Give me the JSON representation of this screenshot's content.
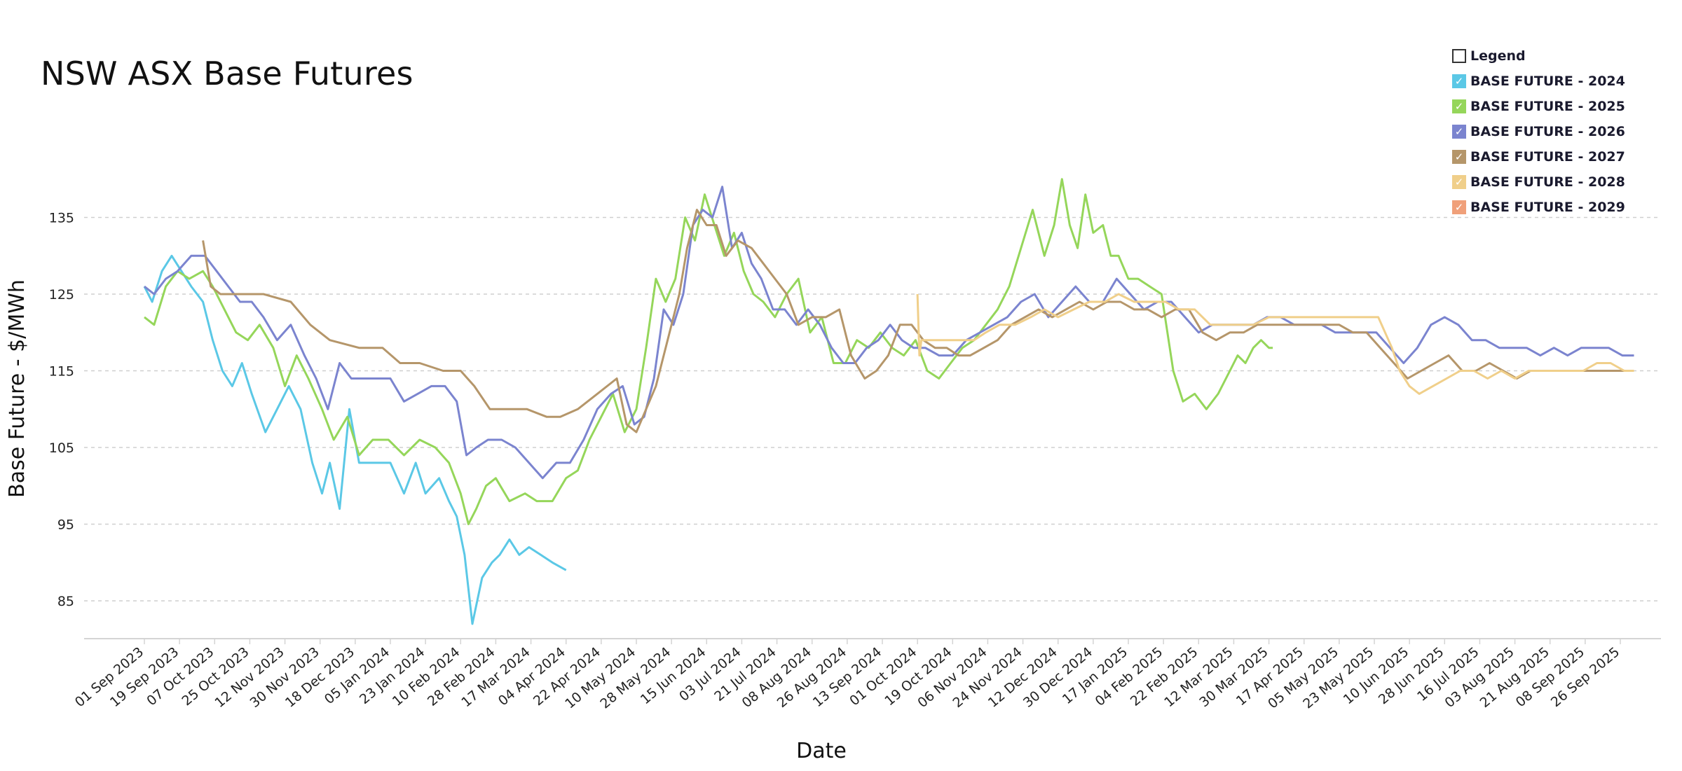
{
  "title": "NSW ASX Base Futures",
  "legend": {
    "title": "Legend",
    "items": [
      {
        "label": "BASE FUTURE - 2024",
        "color": "#5bc8e6"
      },
      {
        "label": "BASE FUTURE - 2025",
        "color": "#95d65a"
      },
      {
        "label": "BASE FUTURE - 2026",
        "color": "#7b84cf"
      },
      {
        "label": "BASE FUTURE - 2027",
        "color": "#b5966a"
      },
      {
        "label": "BASE FUTURE - 2028",
        "color": "#f0cf8a"
      },
      {
        "label": "BASE FUTURE - 2029",
        "color": "#f0a07a"
      }
    ]
  },
  "chart_data": {
    "type": "line",
    "xlabel": "Date",
    "ylabel": "Base Future -  $/MWh",
    "x_ticks": [
      "01 Sep 2023",
      "19 Sep 2023",
      "07 Oct 2023",
      "25 Oct 2023",
      "12 Nov 2023",
      "30 Nov 2023",
      "18 Dec 2023",
      "05 Jan 2024",
      "23 Jan 2024",
      "10 Feb 2024",
      "28 Feb 2024",
      "17 Mar 2024",
      "04 Apr 2024",
      "22 Apr 2024",
      "10 May 2024",
      "28 May 2024",
      "15 Jun 2024",
      "03 Jul 2024",
      "21 Jul 2024",
      "08 Aug 2024",
      "26 Aug 2024",
      "13 Sep 2024",
      "01 Oct 2024",
      "19 Oct 2024",
      "06 Nov 2024",
      "24 Nov 2024",
      "12 Dec 2024",
      "30 Dec 2024",
      "17 Jan 2025",
      "04 Feb 2025",
      "22 Feb 2025",
      "12 Mar 2025",
      "30 Mar 2025",
      "17 Apr 2025",
      "05 May 2025",
      "23 May 2025",
      "10 Jun 2025",
      "28 Jun 2025",
      "16 Jul 2025",
      "03 Aug 2025",
      "21 Aug 2025",
      "08 Sep 2025",
      "26 Sep 2025"
    ],
    "y_ticks": [
      85,
      95,
      105,
      115,
      125,
      135
    ],
    "ylim": [
      80,
      137
    ],
    "grid": true,
    "series": [
      {
        "name": "BASE FUTURE - 2024",
        "color": "#5bc8e6",
        "x": [
          "2023-09-01",
          "2023-09-05",
          "2023-09-10",
          "2023-09-15",
          "2023-09-20",
          "2023-09-25",
          "2023-10-01",
          "2023-10-06",
          "2023-10-11",
          "2023-10-16",
          "2023-10-21",
          "2023-10-26",
          "2023-11-02",
          "2023-11-08",
          "2023-11-14",
          "2023-11-20",
          "2023-11-26",
          "2023-12-01",
          "2023-12-05",
          "2023-12-10",
          "2023-12-15",
          "2023-12-20",
          "2023-12-28",
          "2024-01-05",
          "2024-01-12",
          "2024-01-18",
          "2024-01-23",
          "2024-01-30",
          "2024-02-04",
          "2024-02-08",
          "2024-02-12",
          "2024-02-16",
          "2024-02-21",
          "2024-02-26",
          "2024-03-01",
          "2024-03-06",
          "2024-03-11",
          "2024-03-16",
          "2024-03-22",
          "2024-03-28",
          "2024-04-04"
        ],
        "values": [
          126,
          124,
          128,
          130,
          128,
          126,
          124,
          119,
          115,
          113,
          116,
          112,
          107,
          110,
          113,
          110,
          103,
          99,
          103,
          97,
          110,
          103,
          103,
          103,
          99,
          103,
          99,
          101,
          98,
          96,
          91,
          82,
          88,
          90,
          91,
          93,
          91,
          92,
          91,
          90,
          89
        ]
      },
      {
        "name": "BASE FUTURE - 2025",
        "color": "#95d65a",
        "x": [
          "2023-09-01",
          "2023-09-06",
          "2023-09-12",
          "2023-09-18",
          "2023-09-24",
          "2023-10-01",
          "2023-10-06",
          "2023-10-12",
          "2023-10-18",
          "2023-10-24",
          "2023-10-30",
          "2023-11-06",
          "2023-11-12",
          "2023-11-18",
          "2023-11-24",
          "2023-12-01",
          "2023-12-07",
          "2023-12-14",
          "2023-12-20",
          "2023-12-27",
          "2024-01-04",
          "2024-01-12",
          "2024-01-20",
          "2024-01-28",
          "2024-02-04",
          "2024-02-10",
          "2024-02-14",
          "2024-02-18",
          "2024-02-23",
          "2024-02-28",
          "2024-03-06",
          "2024-03-14",
          "2024-03-20",
          "2024-03-28",
          "2024-04-04",
          "2024-04-10",
          "2024-04-16",
          "2024-04-22",
          "2024-04-28",
          "2024-05-04",
          "2024-05-10",
          "2024-05-15",
          "2024-05-20",
          "2024-05-25",
          "2024-05-30",
          "2024-06-04",
          "2024-06-09",
          "2024-06-14",
          "2024-06-19",
          "2024-06-24",
          "2024-06-29",
          "2024-07-04",
          "2024-07-09",
          "2024-07-14",
          "2024-07-20",
          "2024-07-26",
          "2024-08-01",
          "2024-08-07",
          "2024-08-13",
          "2024-08-19",
          "2024-08-25",
          "2024-08-31",
          "2024-09-06",
          "2024-09-12",
          "2024-09-18",
          "2024-09-24",
          "2024-09-30",
          "2024-10-06",
          "2024-10-12",
          "2024-10-18",
          "2024-10-24",
          "2024-10-30",
          "2024-11-05",
          "2024-11-11",
          "2024-11-17",
          "2024-11-23",
          "2024-11-29",
          "2024-12-05",
          "2024-12-10",
          "2024-12-14",
          "2024-12-18",
          "2024-12-22",
          "2024-12-26",
          "2024-12-30",
          "2025-01-04",
          "2025-01-08",
          "2025-01-12",
          "2025-01-17",
          "2025-01-22",
          "2025-01-28",
          "2025-02-03",
          "2025-02-09",
          "2025-02-14",
          "2025-02-20",
          "2025-02-26",
          "2025-03-04",
          "2025-03-10",
          "2025-03-14",
          "2025-03-18",
          "2025-03-22",
          "2025-03-26",
          "2025-03-30",
          "2025-04-01"
        ],
        "values": [
          122,
          121,
          126,
          128,
          127,
          128,
          126,
          123,
          120,
          119,
          121,
          118,
          113,
          117,
          114,
          110,
          106,
          109,
          104,
          106,
          106,
          104,
          106,
          105,
          103,
          99,
          95,
          97,
          100,
          101,
          98,
          99,
          98,
          98,
          101,
          102,
          106,
          109,
          112,
          107,
          110,
          118,
          127,
          124,
          127,
          135,
          132,
          138,
          134,
          130,
          133,
          128,
          125,
          124,
          122,
          125,
          127,
          120,
          122,
          116,
          116,
          119,
          118,
          120,
          118,
          117,
          119,
          115,
          114,
          116,
          118,
          119,
          121,
          123,
          126,
          131,
          136,
          130,
          134,
          140,
          134,
          131,
          138,
          133,
          134,
          130,
          130,
          127,
          127,
          126,
          125,
          115,
          111,
          112,
          110,
          112,
          115,
          117,
          116,
          118,
          119,
          118,
          118
        ]
      },
      {
        "name": "BASE FUTURE - 2026",
        "color": "#7b84cf",
        "x": [
          "2023-09-01",
          "2023-09-06",
          "2023-09-12",
          "2023-09-18",
          "2023-09-25",
          "2023-10-02",
          "2023-10-08",
          "2023-10-14",
          "2023-10-20",
          "2023-10-26",
          "2023-11-01",
          "2023-11-08",
          "2023-11-15",
          "2023-11-22",
          "2023-11-28",
          "2023-12-04",
          "2023-12-10",
          "2023-12-16",
          "2023-12-22",
          "2023-12-28",
          "2024-01-05",
          "2024-01-12",
          "2024-01-19",
          "2024-01-26",
          "2024-02-02",
          "2024-02-08",
          "2024-02-13",
          "2024-02-18",
          "2024-02-24",
          "2024-03-02",
          "2024-03-09",
          "2024-03-16",
          "2024-03-23",
          "2024-03-30",
          "2024-04-06",
          "2024-04-13",
          "2024-04-20",
          "2024-04-27",
          "2024-05-03",
          "2024-05-09",
          "2024-05-14",
          "2024-05-19",
          "2024-05-24",
          "2024-05-29",
          "2024-06-03",
          "2024-06-08",
          "2024-06-13",
          "2024-06-18",
          "2024-06-23",
          "2024-06-28",
          "2024-07-03",
          "2024-07-08",
          "2024-07-13",
          "2024-07-19",
          "2024-07-25",
          "2024-07-31",
          "2024-08-06",
          "2024-08-12",
          "2024-08-18",
          "2024-08-24",
          "2024-08-30",
          "2024-09-05",
          "2024-09-11",
          "2024-09-17",
          "2024-09-23",
          "2024-09-29",
          "2024-10-05",
          "2024-10-12",
          "2024-10-19",
          "2024-10-26",
          "2024-11-02",
          "2024-11-09",
          "2024-11-16",
          "2024-11-23",
          "2024-11-30",
          "2024-12-07",
          "2024-12-14",
          "2024-12-21",
          "2024-12-28",
          "2025-01-04",
          "2025-01-11",
          "2025-01-18",
          "2025-01-25",
          "2025-02-01",
          "2025-02-08",
          "2025-02-15",
          "2025-02-22",
          "2025-03-01",
          "2025-03-08",
          "2025-03-15",
          "2025-03-22",
          "2025-03-29",
          "2025-04-05",
          "2025-04-12",
          "2025-04-19",
          "2025-04-26",
          "2025-05-03",
          "2025-05-10",
          "2025-05-17",
          "2025-05-24",
          "2025-05-31",
          "2025-06-07",
          "2025-06-14",
          "2025-06-21",
          "2025-06-28",
          "2025-07-05",
          "2025-07-12",
          "2025-07-19",
          "2025-07-26",
          "2025-08-02",
          "2025-08-09",
          "2025-08-16",
          "2025-08-23",
          "2025-08-30",
          "2025-09-06",
          "2025-09-13",
          "2025-09-20",
          "2025-09-27",
          "2025-10-03"
        ],
        "values": [
          126,
          125,
          127,
          128,
          130,
          130,
          128,
          126,
          124,
          124,
          122,
          119,
          121,
          117,
          114,
          110,
          116,
          114,
          114,
          114,
          114,
          111,
          112,
          113,
          113,
          111,
          104,
          105,
          106,
          106,
          105,
          103,
          101,
          103,
          103,
          106,
          110,
          112,
          113,
          108,
          109,
          114,
          123,
          121,
          125,
          134,
          136,
          135,
          139,
          131,
          133,
          129,
          127,
          123,
          123,
          121,
          123,
          121,
          118,
          116,
          116,
          118,
          119,
          121,
          119,
          118,
          118,
          117,
          117,
          119,
          120,
          121,
          122,
          124,
          125,
          122,
          124,
          126,
          124,
          124,
          127,
          125,
          123,
          124,
          124,
          122,
          120,
          121,
          121,
          121,
          121,
          122,
          122,
          121,
          121,
          121,
          120,
          120,
          120,
          120,
          118,
          116,
          118,
          121,
          122,
          121,
          119,
          119,
          118,
          118,
          118,
          117,
          118,
          117,
          118,
          118,
          118,
          117,
          117
        ]
      },
      {
        "name": "BASE FUTURE - 2027",
        "color": "#b5966a",
        "x": [
          "2023-10-01",
          "2023-10-05",
          "2023-10-10",
          "2023-10-20",
          "2023-11-01",
          "2023-11-15",
          "2023-11-25",
          "2023-12-05",
          "2023-12-20",
          "2024-01-01",
          "2024-01-10",
          "2024-01-20",
          "2024-02-01",
          "2024-02-10",
          "2024-02-17",
          "2024-02-25",
          "2024-03-05",
          "2024-03-15",
          "2024-03-25",
          "2024-04-01",
          "2024-04-10",
          "2024-04-20",
          "2024-04-30",
          "2024-05-05",
          "2024-05-10",
          "2024-05-15",
          "2024-05-20",
          "2024-05-25",
          "2024-06-01",
          "2024-06-05",
          "2024-06-10",
          "2024-06-15",
          "2024-06-20",
          "2024-06-25",
          "2024-07-01",
          "2024-07-08",
          "2024-07-14",
          "2024-07-20",
          "2024-07-26",
          "2024-08-01",
          "2024-08-08",
          "2024-08-15",
          "2024-08-22",
          "2024-08-28",
          "2024-09-04",
          "2024-09-10",
          "2024-09-16",
          "2024-09-22",
          "2024-09-28",
          "2024-10-04",
          "2024-10-10",
          "2024-10-16",
          "2024-10-22",
          "2024-10-28",
          "2024-11-04",
          "2024-11-11",
          "2024-11-18",
          "2024-11-25",
          "2024-12-02",
          "2024-12-09",
          "2024-12-16",
          "2024-12-23",
          "2024-12-30",
          "2025-01-06",
          "2025-01-13",
          "2025-01-20",
          "2025-01-27",
          "2025-02-03",
          "2025-02-10",
          "2025-02-17",
          "2025-02-24",
          "2025-03-03",
          "2025-03-10",
          "2025-03-17",
          "2025-03-24",
          "2025-03-31",
          "2025-04-07",
          "2025-04-14",
          "2025-04-21",
          "2025-04-28",
          "2025-05-05",
          "2025-05-12",
          "2025-05-19",
          "2025-05-26",
          "2025-06-02",
          "2025-06-09",
          "2025-06-16",
          "2025-06-23",
          "2025-06-30",
          "2025-07-07",
          "2025-07-14",
          "2025-07-21",
          "2025-07-28",
          "2025-08-04",
          "2025-08-11",
          "2025-08-18",
          "2025-08-25",
          "2025-09-01",
          "2025-09-08",
          "2025-09-15",
          "2025-09-22",
          "2025-09-29",
          "2025-10-03"
        ],
        "values": [
          132,
          126,
          125,
          125,
          125,
          124,
          121,
          119,
          118,
          118,
          116,
          116,
          115,
          115,
          113,
          110,
          110,
          110,
          109,
          109,
          110,
          112,
          114,
          108,
          107,
          110,
          113,
          118,
          125,
          131,
          136,
          134,
          134,
          130,
          132,
          131,
          129,
          127,
          125,
          121,
          122,
          122,
          123,
          117,
          114,
          115,
          117,
          121,
          121,
          119,
          118,
          118,
          117,
          117,
          118,
          119,
          121,
          122,
          123,
          122,
          123,
          124,
          123,
          124,
          124,
          123,
          123,
          122,
          123,
          123,
          120,
          119,
          120,
          120,
          121,
          121,
          121,
          121,
          121,
          121,
          121,
          120,
          120,
          118,
          116,
          114,
          115,
          116,
          117,
          115,
          115,
          116,
          115,
          114,
          115,
          115,
          115,
          115,
          115,
          115,
          115,
          115,
          115
        ]
      },
      {
        "name": "BASE FUTURE - 2028",
        "color": "#f0cf8a",
        "x": [
          "2024-10-01",
          "2024-10-02",
          "2024-10-03",
          "2024-10-10",
          "2024-10-20",
          "2024-10-30",
          "2024-11-05",
          "2024-11-12",
          "2024-11-20",
          "2024-11-28",
          "2024-12-05",
          "2024-12-12",
          "2024-12-20",
          "2024-12-28",
          "2025-01-05",
          "2025-01-12",
          "2025-01-20",
          "2025-01-28",
          "2025-02-05",
          "2025-02-12",
          "2025-02-20",
          "2025-02-28",
          "2025-03-06",
          "2025-03-14",
          "2025-03-22",
          "2025-03-30",
          "2025-04-07",
          "2025-04-15",
          "2025-04-23",
          "2025-05-01",
          "2025-05-09",
          "2025-05-17",
          "2025-05-25",
          "2025-06-01",
          "2025-06-05",
          "2025-06-10",
          "2025-06-15",
          "2025-06-22",
          "2025-06-29",
          "2025-07-06",
          "2025-07-13",
          "2025-07-20",
          "2025-07-27",
          "2025-08-03",
          "2025-08-10",
          "2025-08-17",
          "2025-08-24",
          "2025-08-31",
          "2025-09-07",
          "2025-09-14",
          "2025-09-21",
          "2025-09-28",
          "2025-10-03"
        ],
        "values": [
          125,
          117,
          119,
          119,
          119,
          119,
          120,
          121,
          121,
          122,
          123,
          122,
          123,
          124,
          124,
          125,
          124,
          124,
          124,
          123,
          123,
          121,
          121,
          121,
          121,
          122,
          122,
          122,
          122,
          122,
          122,
          122,
          122,
          118,
          115,
          113,
          112,
          113,
          114,
          115,
          115,
          114,
          115,
          114,
          115,
          115,
          115,
          115,
          115,
          116,
          116,
          115,
          115
        ]
      },
      {
        "name": "BASE FUTURE - 2029",
        "color": "#f0a07a",
        "x": [],
        "values": []
      }
    ]
  }
}
